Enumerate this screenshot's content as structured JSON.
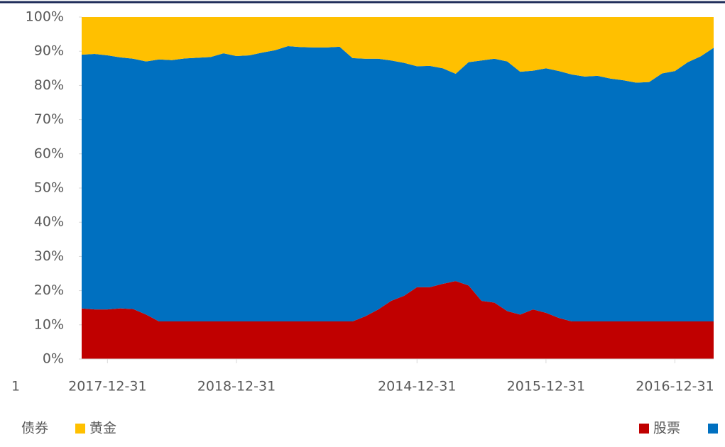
{
  "chart_data": {
    "type": "stacked_area",
    "x_label_fragment": "1",
    "categories": [
      null,
      null,
      "2017-12-31",
      null,
      null,
      null,
      null,
      null,
      null,
      null,
      null,
      null,
      "2018-12-31",
      null,
      null,
      null,
      null,
      null,
      null,
      null,
      null,
      null,
      null,
      null,
      null,
      null,
      "2014-12-31",
      null,
      null,
      null,
      null,
      null,
      null,
      null,
      null,
      null,
      "2015-12-31",
      null,
      null,
      null,
      null,
      null,
      null,
      null,
      null,
      null,
      "2016-12-31",
      null,
      null,
      null
    ],
    "series": [
      {
        "name": "股票",
        "color": "#c00000",
        "values": [
          14.8,
          14.5,
          14.5,
          14.8,
          14.6,
          13,
          11,
          11,
          11,
          11,
          11,
          11,
          11,
          11,
          11,
          11,
          11,
          11,
          11,
          11,
          11,
          11,
          12.5,
          14.5,
          17,
          18.5,
          21,
          21,
          22,
          22.8,
          21.5,
          17,
          16.5,
          14,
          13,
          14.5,
          13.5,
          12,
          11,
          11,
          11,
          11,
          11,
          11,
          11,
          11,
          11,
          11,
          11,
          11
        ]
      },
      {
        "name": "债券",
        "color": "#0070c0",
        "values": [
          74.2,
          74.7,
          74.3,
          73.4,
          73.2,
          74,
          76.6,
          76.4,
          76.9,
          77.1,
          77.3,
          78.4,
          77.6,
          77.8,
          78.6,
          79.3,
          80.5,
          80.2,
          80.1,
          80.1,
          80.3,
          77,
          75.3,
          73.3,
          70.3,
          68.1,
          64.6,
          64.7,
          63,
          60.6,
          65.3,
          70.3,
          71.3,
          73,
          71,
          69.8,
          71.5,
          72.2,
          72.2,
          71.6,
          71.8,
          71,
          70.5,
          69.8,
          70,
          72.5,
          73.2,
          75.8,
          77.5,
          80
        ]
      },
      {
        "name": "黄金",
        "color": "#ffc000",
        "values": [
          11,
          10.8,
          11.2,
          11.8,
          12.2,
          13,
          12.4,
          12.6,
          12.1,
          11.9,
          11.7,
          10.6,
          11.4,
          11.2,
          10.4,
          9.7,
          8.5,
          8.8,
          8.9,
          8.9,
          8.7,
          12,
          12.2,
          12.2,
          12.7,
          13.4,
          14.4,
          14.3,
          15,
          16.6,
          13.2,
          12.7,
          12.2,
          13,
          16,
          15.7,
          15,
          15.8,
          16.8,
          17.4,
          17.2,
          18,
          18.5,
          19.2,
          19,
          16.5,
          15.8,
          13.2,
          11.5,
          9
        ]
      }
    ],
    "ylim": [
      0,
      100
    ],
    "yticks": [
      {
        "value": 0,
        "label": "0%"
      },
      {
        "value": 10,
        "label": "10%"
      },
      {
        "value": 20,
        "label": "20%"
      },
      {
        "value": 30,
        "label": "30%"
      },
      {
        "value": 40,
        "label": "40%"
      },
      {
        "value": 50,
        "label": "50%"
      },
      {
        "value": 60,
        "label": "60%"
      },
      {
        "value": 70,
        "label": "70%"
      },
      {
        "value": 80,
        "label": "80%"
      },
      {
        "value": 90,
        "label": "90%"
      },
      {
        "value": 100,
        "label": "100%"
      }
    ],
    "grid": false
  }
}
